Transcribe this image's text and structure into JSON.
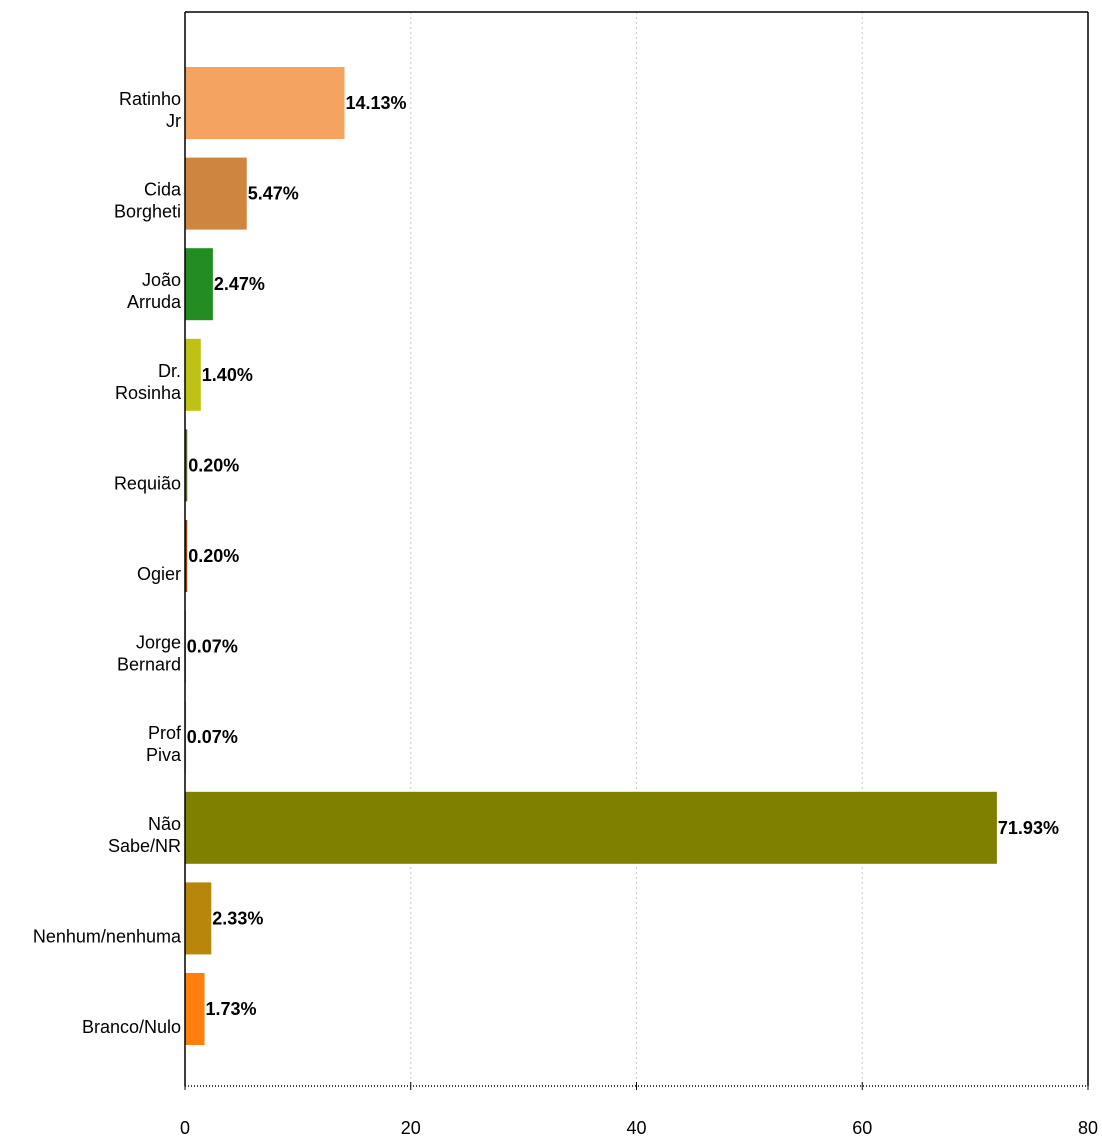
{
  "chart_data": {
    "type": "bar",
    "orientation": "horizontal",
    "title": "",
    "xlabel": "",
    "ylabel": "",
    "xlim": [
      0,
      80
    ],
    "x_ticks": [
      "0",
      "20",
      "40",
      "60",
      "80"
    ],
    "grid": "vertical dotted",
    "categories": [
      [
        "Ratinho",
        "Jr"
      ],
      [
        "Cida",
        "Borgheti"
      ],
      [
        "João",
        "Arruda"
      ],
      [
        "Dr.",
        "Rosinha"
      ],
      [
        "Requião"
      ],
      [
        "Ogier"
      ],
      [
        "Jorge",
        "Bernard"
      ],
      [
        "Prof",
        "Piva"
      ],
      [
        "Não",
        "Sabe/NR"
      ],
      [
        "Nenhum/nenhuma"
      ],
      [
        "Branco/Nulo"
      ]
    ],
    "values": [
      14.13,
      5.47,
      2.47,
      1.4,
      0.2,
      0.2,
      0.07,
      0.07,
      71.93,
      2.33,
      1.73
    ],
    "value_labels": [
      "14.13%",
      "5.47%",
      "2.47%",
      "1.40%",
      "0.20%",
      "0.20%",
      "0.07%",
      "0.07%",
      "71.93%",
      "2.33%",
      "1.73%"
    ],
    "colors": [
      "#F4A460",
      "#CD853F",
      "#228B22",
      "#BFC114",
      "#556B2F",
      "#8B4513",
      "#A0522D",
      "#6B8E23",
      "#808000",
      "#B8860B",
      "#FF7F0E"
    ]
  }
}
